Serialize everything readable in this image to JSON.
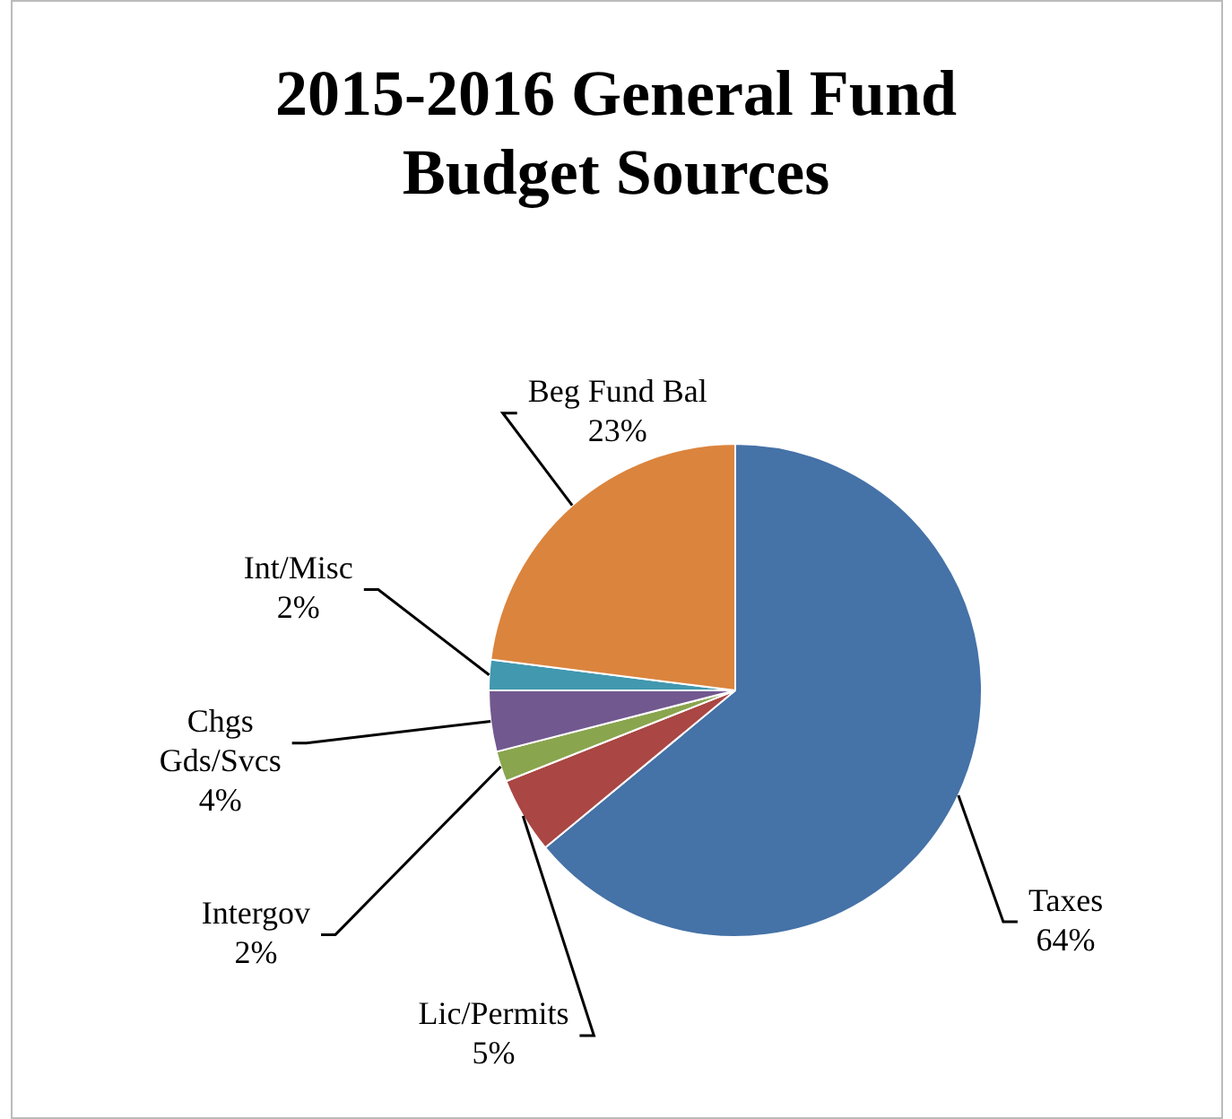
{
  "chart_data": {
    "type": "pie",
    "title": "2015-2016 General Fund Budget Sources",
    "categories": [
      "Taxes",
      "Lic/Permits",
      "Intergov",
      "Chgs Gds/Svcs",
      "Int/Misc",
      "Beg Fund Bal"
    ],
    "values": [
      64,
      5,
      2,
      4,
      2,
      23
    ],
    "value_labels": [
      "64%",
      "5%",
      "2%",
      "4%",
      "2%",
      "23%"
    ],
    "colors": [
      "#4572a7",
      "#aa4643",
      "#89a54e",
      "#71588f",
      "#4198af",
      "#db843d"
    ],
    "legend": false
  }
}
